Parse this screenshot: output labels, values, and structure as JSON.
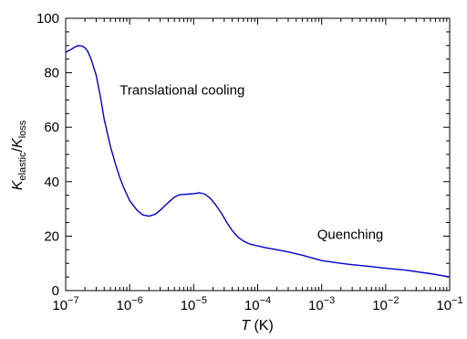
{
  "chart_data": {
    "type": "line",
    "x_scale": "log",
    "xlim": [
      1e-07,
      0.1
    ],
    "ylim": [
      0,
      100
    ],
    "grid": false,
    "xlabel": {
      "main": "T",
      "unit": " (K)"
    },
    "ylabel": {
      "num": "K",
      "num_sub": "elastic",
      "slash": "/",
      "den": "K",
      "den_sub": "loss"
    },
    "x_tick_labels": [
      {
        "value": 1e-07,
        "base": "10",
        "exp": "−7"
      },
      {
        "value": 1e-06,
        "base": "10",
        "exp": "−6"
      },
      {
        "value": 1e-05,
        "base": "10",
        "exp": "−5"
      },
      {
        "value": 0.0001,
        "base": "10",
        "exp": "−4"
      },
      {
        "value": 0.001,
        "base": "10",
        "exp": "−3"
      },
      {
        "value": 0.01,
        "base": "10",
        "exp": "−2"
      },
      {
        "value": 0.1,
        "base": "10",
        "exp": "−1"
      }
    ],
    "y_tick_labels": [
      {
        "value": 0,
        "label": "0"
      },
      {
        "value": 20,
        "label": "20"
      },
      {
        "value": 40,
        "label": "40"
      },
      {
        "value": 60,
        "label": "60"
      },
      {
        "value": 80,
        "label": "80"
      },
      {
        "value": 100,
        "label": "100"
      }
    ],
    "series": [
      {
        "color": "#0000cc",
        "x": [
          1e-07,
          1.2e-07,
          1.4e-07,
          1.6e-07,
          1.8e-07,
          2e-07,
          2.2e-07,
          2.5e-07,
          3e-07,
          3.5e-07,
          4e-07,
          5e-07,
          6e-07,
          7e-07,
          8e-07,
          1e-06,
          1.3e-06,
          1.6e-06,
          2e-06,
          2.5e-06,
          3e-06,
          3.5e-06,
          4e-06,
          5e-06,
          6e-06,
          7e-06,
          8e-06,
          1e-05,
          1.25e-05,
          1.5e-05,
          1.8e-05,
          2.2e-05,
          2.7e-05,
          3.3e-05,
          4e-05,
          5e-05,
          6e-05,
          7e-05,
          8e-05,
          0.0001,
          0.00013,
          0.0002,
          0.0003,
          0.0005,
          0.0007,
          0.001,
          0.002,
          0.003,
          0.005,
          0.01,
          0.02,
          0.05,
          0.1
        ],
        "y": [
          87.5,
          88.5,
          89.5,
          90,
          89.8,
          89.2,
          88,
          85,
          79,
          71,
          63,
          53,
          46.5,
          41.5,
          38,
          33,
          29.5,
          27.8,
          27.3,
          28,
          29.5,
          31,
          32.3,
          34.3,
          35.2,
          35.3,
          35.4,
          35.6,
          35.9,
          35.4,
          34,
          31.5,
          28.5,
          25,
          22,
          19.5,
          18.2,
          17.4,
          16.9,
          16.4,
          15.8,
          15,
          14.2,
          13,
          12,
          11,
          10,
          9.5,
          9,
          8.2,
          7.5,
          6.2,
          5
        ]
      }
    ],
    "annotations": [
      {
        "text": "Translational cooling",
        "x": 7e-07,
        "y": 72
      },
      {
        "text": "Quenching",
        "x": 0.00085,
        "y": 19
      }
    ]
  }
}
